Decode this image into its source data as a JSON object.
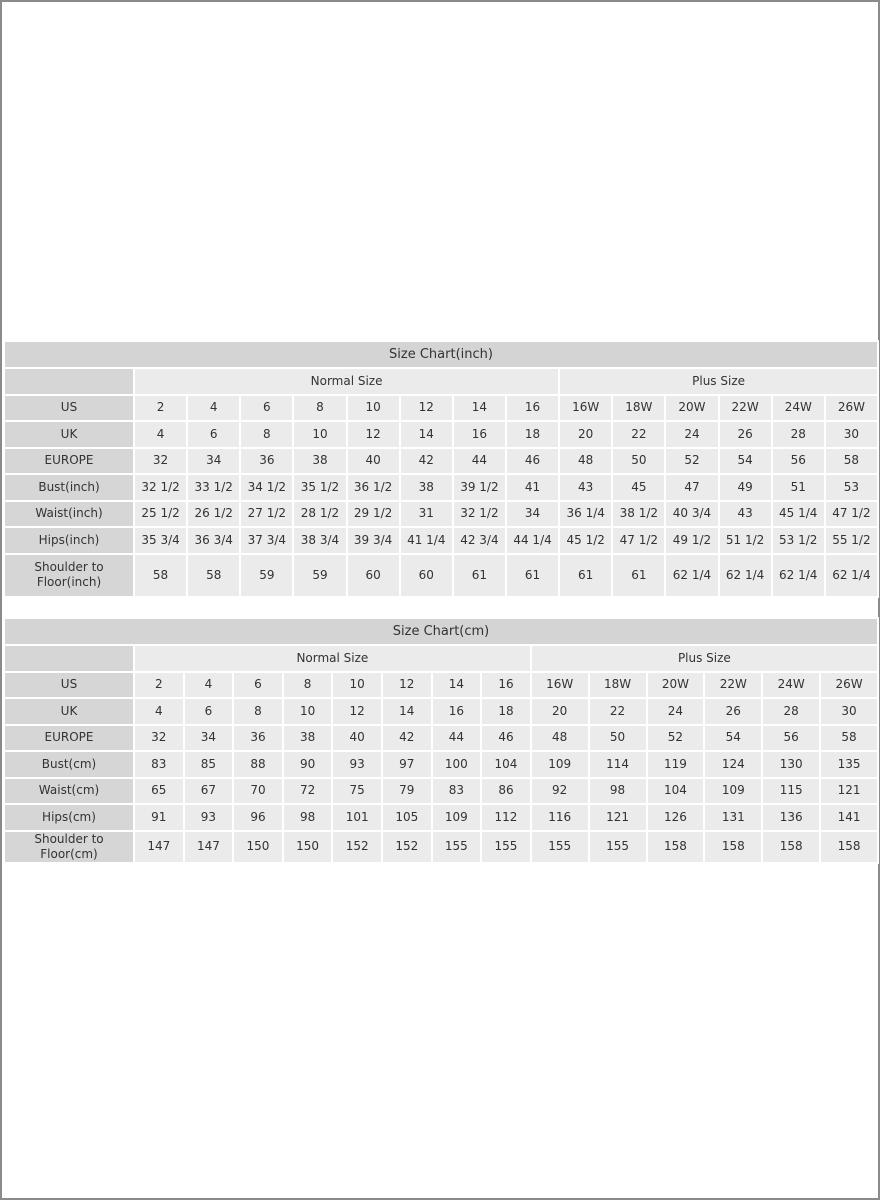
{
  "tables": [
    {
      "title": "Size Chart(inch)",
      "groups": [
        "Normal Size",
        "Plus Size"
      ],
      "rows": [
        {
          "label": "US",
          "values": [
            "2",
            "4",
            "6",
            "8",
            "10",
            "12",
            "14",
            "16",
            "16W",
            "18W",
            "20W",
            "22W",
            "24W",
            "26W"
          ]
        },
        {
          "label": "UK",
          "values": [
            "4",
            "6",
            "8",
            "10",
            "12",
            "14",
            "16",
            "18",
            "20",
            "22",
            "24",
            "26",
            "28",
            "30"
          ]
        },
        {
          "label": "EUROPE",
          "values": [
            "32",
            "34",
            "36",
            "38",
            "40",
            "42",
            "44",
            "46",
            "48",
            "50",
            "52",
            "54",
            "56",
            "58"
          ]
        },
        {
          "label": "Bust(inch)",
          "values": [
            "32 1/2",
            "33 1/2",
            "34 1/2",
            "35 1/2",
            "36 1/2",
            "38",
            "39 1/2",
            "41",
            "43",
            "45",
            "47",
            "49",
            "51",
            "53"
          ]
        },
        {
          "label": "Waist(inch)",
          "values": [
            "25 1/2",
            "26 1/2",
            "27 1/2",
            "28 1/2",
            "29 1/2",
            "31",
            "32 1/2",
            "34",
            "36 1/4",
            "38 1/2",
            "40 3/4",
            "43",
            "45 1/4",
            "47 1/2"
          ]
        },
        {
          "label": "Hips(inch)",
          "values": [
            "35 3/4",
            "36 3/4",
            "37 3/4",
            "38 3/4",
            "39 3/4",
            "41 1/4",
            "42 3/4",
            "44 1/4",
            "45 1/2",
            "47 1/2",
            "49 1/2",
            "51 1/2",
            "53 1/2",
            "55 1/2"
          ]
        },
        {
          "label": "Shoulder to Floor(inch)",
          "values": [
            "58",
            "58",
            "59",
            "59",
            "60",
            "60",
            "61",
            "61",
            "61",
            "61",
            "62 1/4",
            "62 1/4",
            "62 1/4",
            "62 1/4"
          ]
        }
      ]
    },
    {
      "title": "Size Chart(cm)",
      "groups": [
        "Normal Size",
        "Plus Size"
      ],
      "rows": [
        {
          "label": "US",
          "values": [
            "2",
            "4",
            "6",
            "8",
            "10",
            "12",
            "14",
            "16",
            "16W",
            "18W",
            "20W",
            "22W",
            "24W",
            "26W"
          ]
        },
        {
          "label": "UK",
          "values": [
            "4",
            "6",
            "8",
            "10",
            "12",
            "14",
            "16",
            "18",
            "20",
            "22",
            "24",
            "26",
            "28",
            "30"
          ]
        },
        {
          "label": "EUROPE",
          "values": [
            "32",
            "34",
            "36",
            "38",
            "40",
            "42",
            "44",
            "46",
            "48",
            "50",
            "52",
            "54",
            "56",
            "58"
          ]
        },
        {
          "label": "Bust(cm)",
          "values": [
            "83",
            "85",
            "88",
            "90",
            "93",
            "97",
            "100",
            "104",
            "109",
            "114",
            "119",
            "124",
            "130",
            "135"
          ]
        },
        {
          "label": "Waist(cm)",
          "values": [
            "65",
            "67",
            "70",
            "72",
            "75",
            "79",
            "83",
            "86",
            "92",
            "98",
            "104",
            "109",
            "115",
            "121"
          ]
        },
        {
          "label": "Hips(cm)",
          "values": [
            "91",
            "93",
            "96",
            "98",
            "101",
            "105",
            "109",
            "112",
            "116",
            "121",
            "126",
            "131",
            "136",
            "141"
          ]
        },
        {
          "label": "Shoulder to Floor(cm)",
          "values": [
            "147",
            "147",
            "150",
            "150",
            "152",
            "152",
            "155",
            "155",
            "155",
            "155",
            "158",
            "158",
            "158",
            "158"
          ]
        }
      ]
    }
  ],
  "colors": {
    "title_bg": "#d4d4d4",
    "label_bg": "#d6d6d6",
    "cell_bg": "#ebebeb",
    "text": "#333333"
  }
}
